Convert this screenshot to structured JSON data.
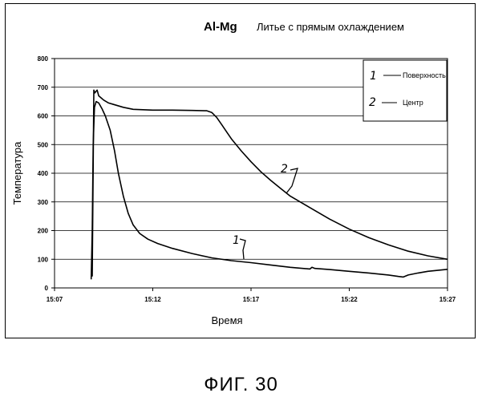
{
  "chart_data": {
    "type": "line",
    "title_bold": "Al-Mg",
    "title": "Литье с прямым охлаждением",
    "xlabel": "Время",
    "ylabel": "Температура",
    "x_ticks": [
      "15:07",
      "15:12",
      "15:17",
      "15:22",
      "15:27"
    ],
    "x_unit": "minutes",
    "xlim": [
      "15:07",
      "15:27"
    ],
    "y_ticks": [
      0,
      100,
      200,
      300,
      400,
      500,
      600,
      700,
      800
    ],
    "ylim": [
      0,
      800
    ],
    "grid": "horizontal",
    "legend_position": "top-right",
    "series": [
      {
        "name": "Поверхность",
        "hand_label": "1",
        "points": [
          [
            "15:08:52",
            30
          ],
          [
            "15:08:55",
            200
          ],
          [
            "15:08:58",
            500
          ],
          [
            "15:09:02",
            630
          ],
          [
            "15:09:07",
            650
          ],
          [
            "15:09:15",
            645
          ],
          [
            "15:09:25",
            625
          ],
          [
            "15:09:35",
            600
          ],
          [
            "15:09:50",
            550
          ],
          [
            "15:10:03",
            480
          ],
          [
            "15:10:15",
            400
          ],
          [
            "15:10:30",
            320
          ],
          [
            "15:10:45",
            260
          ],
          [
            "15:11:00",
            220
          ],
          [
            "15:11:20",
            190
          ],
          [
            "15:11:45",
            170
          ],
          [
            "15:12:15",
            155
          ],
          [
            "15:13:00",
            138
          ],
          [
            "15:14:00",
            120
          ],
          [
            "15:15:00",
            105
          ],
          [
            "15:16:00",
            95
          ],
          [
            "15:17:00",
            88
          ],
          [
            "15:18:00",
            80
          ],
          [
            "15:19:00",
            72
          ],
          [
            "15:20:00",
            66
          ],
          [
            "15:20:06",
            72
          ],
          [
            "15:20:15",
            68
          ],
          [
            "15:21:00",
            64
          ],
          [
            "15:22:00",
            58
          ],
          [
            "15:23:00",
            52
          ],
          [
            "15:24:00",
            45
          ],
          [
            "15:24:30",
            40
          ],
          [
            "15:24:45",
            38
          ],
          [
            "15:25:00",
            45
          ],
          [
            "15:25:30",
            52
          ],
          [
            "15:26:00",
            58
          ],
          [
            "15:27:00",
            65
          ]
        ]
      },
      {
        "name": "Центр",
        "hand_label": "2",
        "points": [
          [
            "15:08:55",
            40
          ],
          [
            "15:09:00",
            690
          ],
          [
            "15:09:03",
            680
          ],
          [
            "15:09:10",
            690
          ],
          [
            "15:09:15",
            670
          ],
          [
            "15:09:30",
            655
          ],
          [
            "15:09:45",
            645
          ],
          [
            "15:10:00",
            640
          ],
          [
            "15:10:30",
            630
          ],
          [
            "15:11:00",
            623
          ],
          [
            "15:12:00",
            620
          ],
          [
            "15:13:00",
            620
          ],
          [
            "15:14:00",
            619
          ],
          [
            "15:14:45",
            618
          ],
          [
            "15:15:00",
            612
          ],
          [
            "15:15:15",
            595
          ],
          [
            "15:15:30",
            570
          ],
          [
            "15:15:45",
            545
          ],
          [
            "15:16:00",
            520
          ],
          [
            "15:16:30",
            478
          ],
          [
            "15:17:00",
            440
          ],
          [
            "15:17:30",
            405
          ],
          [
            "15:18:00",
            375
          ],
          [
            "15:18:30",
            347
          ],
          [
            "15:19:00",
            320
          ],
          [
            "15:20:00",
            280
          ],
          [
            "15:21:00",
            240
          ],
          [
            "15:22:00",
            205
          ],
          [
            "15:23:00",
            175
          ],
          [
            "15:24:00",
            150
          ],
          [
            "15:25:00",
            128
          ],
          [
            "15:26:00",
            112
          ],
          [
            "15:27:00",
            100
          ]
        ]
      }
    ]
  },
  "figure_caption": "ФИГ. 30"
}
